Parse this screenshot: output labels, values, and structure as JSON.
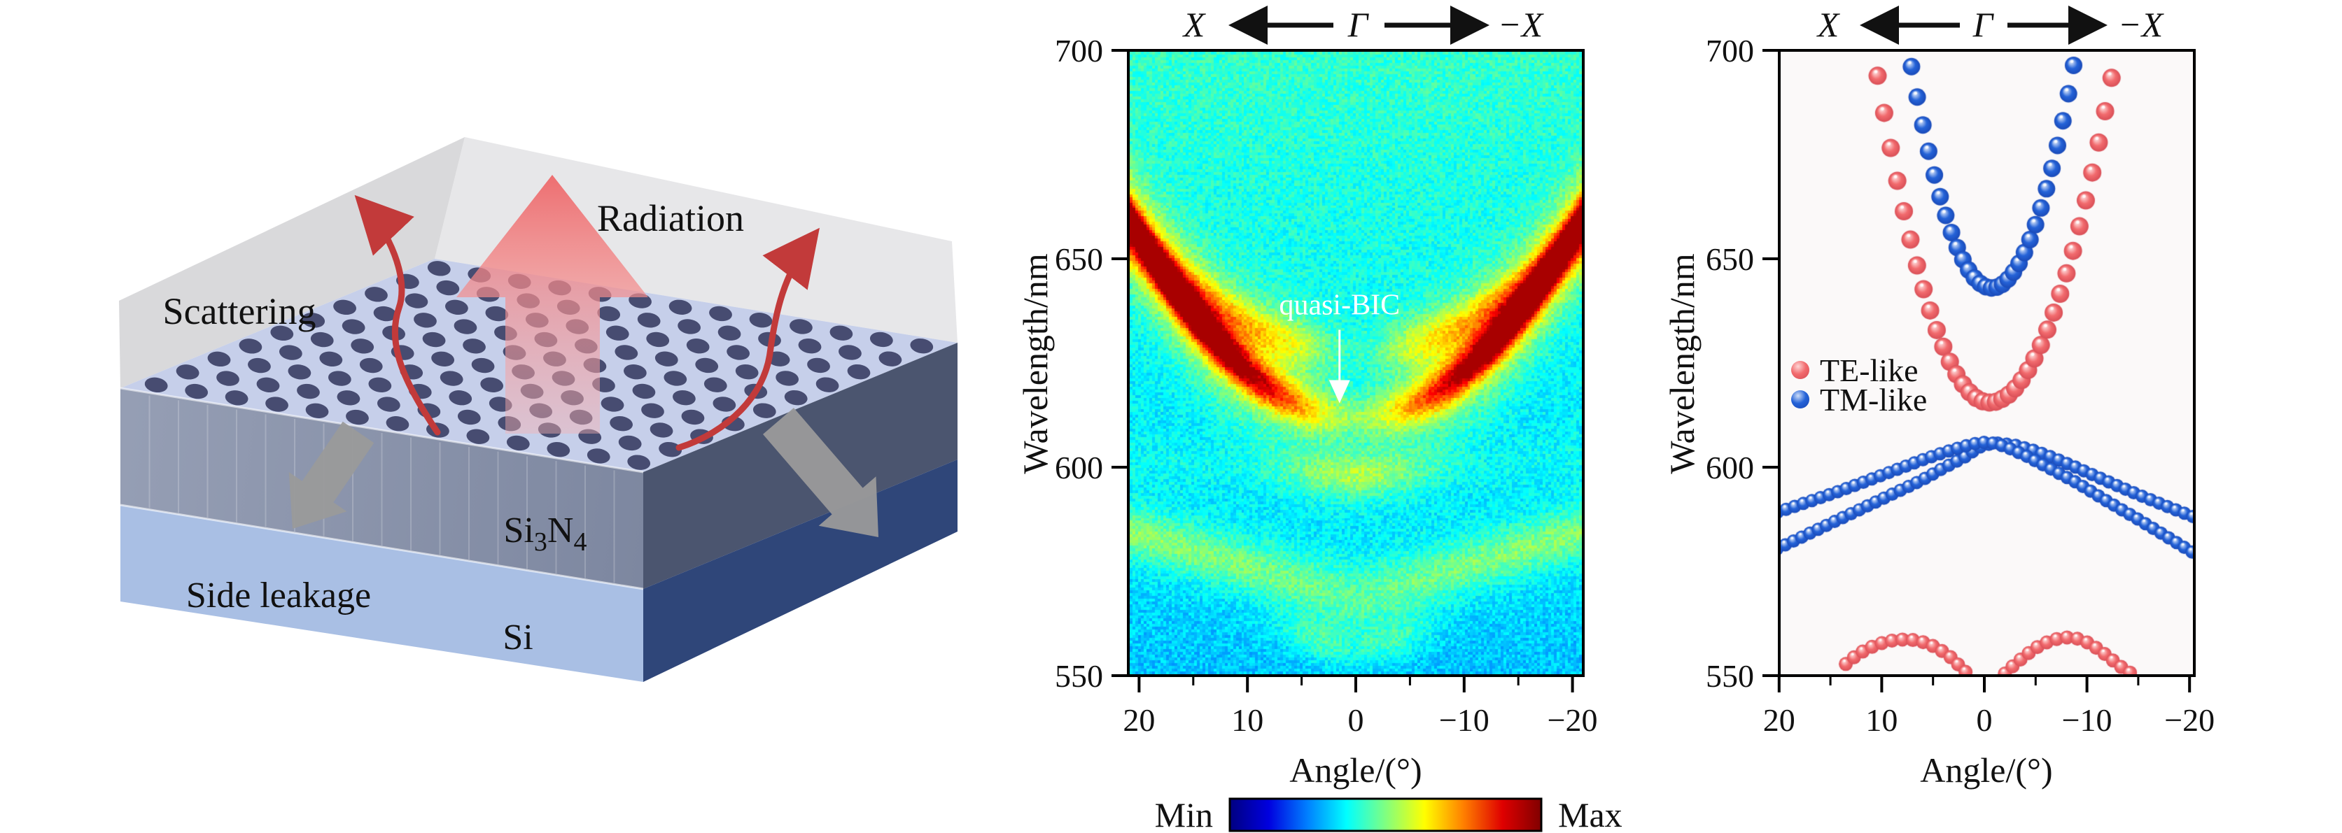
{
  "left_diagram": {
    "labels": {
      "radiation": "Radiation",
      "scattering": "Scattering",
      "si3n4": {
        "base1": "Si",
        "sub1": "3",
        "base2": "N",
        "sub2": "4"
      },
      "side_leakage": "Side leakage",
      "si": "Si"
    },
    "colors": {
      "top_plane": "#e7e7e9",
      "top_plane_shade": "#d9d9db",
      "slab_top": "#c6cfea",
      "hole": "#3c4166",
      "si3n4_front": "#9099af",
      "si_front": "#a9bfe4",
      "side_si3n4": "#4b556f",
      "side_si": "#2f4679",
      "gray_arrow": "#9a9a9a",
      "red_arrow": "#c23a3a",
      "pink_arrow": "#f07e7e"
    }
  },
  "chart_data": [
    {
      "type": "heatmap",
      "panel": "middle",
      "xlabel": "Angle/(°)",
      "ylabel": "Wavelength/nm",
      "bz_path": {
        "left": "X",
        "center": "Γ",
        "right": "−X"
      },
      "x_tick_labels": [
        "20",
        "10",
        "0",
        "−10",
        "−20"
      ],
      "x_tick_values": [
        20,
        10,
        0,
        -10,
        -20
      ],
      "x_minor_tick_values": [
        15,
        5,
        -5,
        -15
      ],
      "y_tick_labels": [
        "700",
        "650",
        "600",
        "550"
      ],
      "y_tick_values": [
        700,
        650,
        600,
        550
      ],
      "xlim": [
        21,
        -21
      ],
      "ylim": [
        550,
        700
      ],
      "grid": false,
      "annotation": {
        "text": "quasi-BIC",
        "color": "#ffffff",
        "theta": 1.5,
        "lambda": 638,
        "arrow_to_lambda": 613
      },
      "colorbar": {
        "min_label": "Min",
        "max_label": "Max",
        "colormap": "jet"
      },
      "background_level": {
        "t_bottom": 0.3,
        "t_top": 0.42,
        "noise": 0.055
      },
      "bands": [
        {
          "kind": "parabola",
          "lambda0": 612,
          "k": 0.11,
          "sigma": 3.5,
          "halo": 2.6,
          "amp_base": 0.12,
          "amp_scale": 0.3,
          "amp_width": 6,
          "boost_amp": 0.28,
          "boost_center": 16,
          "boost_width": 6
        },
        {
          "kind": "parabola",
          "lambda0": 628,
          "k": 0.06,
          "sigma": 4.0,
          "halo": 2.2,
          "amp_base": 0.03,
          "amp_scale": 0.18,
          "amp_width": 5,
          "boost_amp": 0,
          "boost_center": 0,
          "boost_width": 1
        },
        {
          "kind": "vee",
          "lambda0": 598,
          "k": 0.2,
          "sigma": 3.5,
          "halo": 2.0,
          "amp_base": 0.02,
          "amp_scale": 0,
          "amp_width": 1,
          "boost_amp": 0.13,
          "boost_center": 0,
          "boost_width": 6
        },
        {
          "kind": "vee",
          "lambda0": 566,
          "k": 0.9,
          "sigma": 4.0,
          "halo": 2.0,
          "amp_base": 0.085,
          "amp_scale": 0,
          "amp_width": 1,
          "boost_amp": 0,
          "boost_center": 0,
          "boost_width": 1
        },
        {
          "kind": "vee",
          "lambda0": 573,
          "k": 0.5,
          "sigma": 4.0,
          "halo": 2.0,
          "amp_base": 0.05,
          "amp_scale": 0,
          "amp_width": 1,
          "boost_amp": 0,
          "boost_center": 0,
          "boost_width": 1
        },
        {
          "kind": "vee",
          "lambda0": 556,
          "k": 0.8,
          "sigma": 3.0,
          "halo": 2.0,
          "amp_base": 0,
          "amp_scale": 0,
          "amp_width": 1,
          "boost_amp": 0.09,
          "boost_center": 3,
          "boost_width": 4
        }
      ]
    },
    {
      "type": "scatter",
      "panel": "right",
      "xlabel": "Angle/(°)",
      "ylabel": "Wavelength/nm",
      "bz_path": {
        "left": "X",
        "center": "Γ",
        "right": "−X"
      },
      "x_tick_labels": [
        "20",
        "10",
        "0",
        "−10",
        "−20"
      ],
      "x_tick_values": [
        20,
        10,
        0,
        -10,
        -20
      ],
      "x_minor_tick_values": [
        15,
        5,
        -5,
        -15
      ],
      "y_tick_labels": [
        "700",
        "650",
        "600",
        "550"
      ],
      "y_tick_values": [
        700,
        650,
        600,
        550
      ],
      "xlim": [
        20,
        -20.5
      ],
      "ylim": [
        550,
        700
      ],
      "grid": false,
      "plot_bg": "#fbf9f9",
      "legend": [
        {
          "label": "TE-like",
          "color": "#f26b6e"
        },
        {
          "label": "TM-like",
          "color": "#2563d8"
        }
      ],
      "series": [
        {
          "name": "TE-like",
          "color": {
            "base": "#f26b6e",
            "light": "#fdd6d6",
            "dark": "#d94f57"
          },
          "branches": [
            {
              "desc": "upper parabola",
              "bead_radius": 13,
              "bead_spacing": null,
              "points": [
                [
                  10.4,
                  693.9
                ],
                [
                  9.76,
                  685.0
                ],
                [
                  9.12,
                  676.6
                ],
                [
                  8.48,
                  668.7
                ],
                [
                  7.84,
                  661.4
                ],
                [
                  7.2,
                  654.6
                ],
                [
                  6.56,
                  648.4
                ],
                [
                  5.92,
                  642.7
                ],
                [
                  5.28,
                  637.6
                ],
                [
                  4.64,
                  632.9
                ],
                [
                  4.0,
                  628.9
                ],
                [
                  3.36,
                  625.3
                ],
                [
                  2.72,
                  622.3
                ],
                [
                  2.08,
                  619.9
                ],
                [
                  1.44,
                  618.0
                ],
                [
                  0.8,
                  616.6
                ],
                [
                  0.16,
                  615.8
                ],
                [
                  -0.5,
                  615.5
                ],
                [
                  -1.13,
                  615.7
                ],
                [
                  -1.75,
                  616.4
                ],
                [
                  -2.38,
                  617.4
                ],
                [
                  -3.0,
                  618.9
                ],
                [
                  -3.63,
                  620.9
                ],
                [
                  -4.26,
                  623.3
                ],
                [
                  -4.88,
                  626.1
                ],
                [
                  -5.51,
                  629.3
                ],
                [
                  -6.14,
                  633.0
                ],
                [
                  -6.76,
                  637.1
                ],
                [
                  -7.39,
                  641.6
                ],
                [
                  -8.01,
                  646.5
                ],
                [
                  -8.64,
                  651.9
                ],
                [
                  -9.27,
                  657.8
                ],
                [
                  -9.89,
                  664.0
                ],
                [
                  -10.52,
                  670.7
                ],
                [
                  -11.15,
                  677.9
                ],
                [
                  -11.77,
                  685.4
                ],
                [
                  -12.4,
                  693.4
                ]
              ]
            },
            {
              "desc": "lower arc left",
              "bead_radius": 10,
              "bead_spacing": 15,
              "points": [
                [
                  13.5,
                  552.8
                ],
                [
                  12.5,
                  554.8
                ],
                [
                  11.5,
                  556.3
                ],
                [
                  10.5,
                  557.4
                ],
                [
                  9.5,
                  558.2
                ],
                [
                  8.5,
                  558.6
                ],
                [
                  7.5,
                  558.7
                ],
                [
                  6.5,
                  558.4
                ],
                [
                  5.5,
                  557.7
                ],
                [
                  4.5,
                  556.5
                ],
                [
                  3.5,
                  554.9
                ],
                [
                  2.8,
                  553.3
                ],
                [
                  2.2,
                  551.8
                ],
                [
                  1.7,
                  550.6
                ]
              ]
            },
            {
              "desc": "lower arc right",
              "bead_radius": 10,
              "bead_spacing": 15,
              "points": [
                [
                  -2.0,
                  550.5
                ],
                [
                  -2.6,
                  551.9
                ],
                [
                  -3.3,
                  553.4
                ],
                [
                  -4.2,
                  555.2
                ],
                [
                  -5.2,
                  556.9
                ],
                [
                  -6.2,
                  558.1
                ],
                [
                  -7.2,
                  558.9
                ],
                [
                  -8.2,
                  559.2
                ],
                [
                  -9.2,
                  558.8
                ],
                [
                  -10.2,
                  557.8
                ],
                [
                  -11.2,
                  556.2
                ],
                [
                  -12.2,
                  554.3
                ],
                [
                  -13.2,
                  552.3
                ],
                [
                  -14.4,
                  550.4
                ]
              ]
            }
          ]
        },
        {
          "name": "TM-like",
          "color": {
            "base": "#2563d8",
            "light": "#cfdef8",
            "dark": "#1a4ab8"
          },
          "branches": [
            {
              "desc": "upper parabola",
              "bead_radius": 12.5,
              "bead_spacing": null,
              "points": [
                [
                  7.1,
                  696.1
                ],
                [
                  6.54,
                  688.8
                ],
                [
                  5.99,
                  682.1
                ],
                [
                  5.43,
                  675.8
                ],
                [
                  4.87,
                  670.1
                ],
                [
                  4.31,
                  664.9
                ],
                [
                  3.76,
                  660.4
                ],
                [
                  3.2,
                  656.3
                ],
                [
                  2.64,
                  652.7
                ],
                [
                  2.09,
                  649.8
                ],
                [
                  1.53,
                  647.3
                ],
                [
                  0.97,
                  645.4
                ],
                [
                  0.41,
                  644.1
                ],
                [
                  -0.14,
                  643.3
                ],
                [
                  -0.7,
                  643.0
                ],
                [
                  -1.24,
                  643.2
                ],
                [
                  -1.77,
                  643.9
                ],
                [
                  -2.31,
                  645.1
                ],
                [
                  -2.84,
                  646.8
                ],
                [
                  -3.38,
                  648.9
                ],
                [
                  -3.91,
                  651.5
                ],
                [
                  -4.45,
                  654.6
                ],
                [
                  -4.99,
                  658.2
                ],
                [
                  -5.52,
                  662.2
                ],
                [
                  -6.06,
                  666.8
                ],
                [
                  -6.59,
                  671.7
                ],
                [
                  -7.13,
                  677.2
                ],
                [
                  -7.66,
                  683.1
                ],
                [
                  -8.2,
                  689.6
                ],
                [
                  -8.7,
                  696.4
                ]
              ]
            },
            {
              "desc": "middle band A",
              "bead_radius": 9.5,
              "bead_spacing": 13,
              "points": [
                [
                  21,
                  588.5
                ],
                [
                  18,
                  591.0
                ],
                [
                  15,
                  593.5
                ],
                [
                  12,
                  596.2
                ],
                [
                  9,
                  599.0
                ],
                [
                  6,
                  601.8
                ],
                [
                  4,
                  603.5
                ],
                [
                  2,
                  605.0
                ],
                [
                  0.5,
                  605.9
                ],
                [
                  -0.5,
                  606.0
                ],
                [
                  -2,
                  605.0
                ],
                [
                  -4,
                  602.8
                ],
                [
                  -6,
                  600.2
                ],
                [
                  -9,
                  596.3
                ],
                [
                  -12,
                  591.8
                ],
                [
                  -15,
                  587.5
                ],
                [
                  -18,
                  583.0
                ],
                [
                  -21,
                  578.5
                ]
              ]
            },
            {
              "desc": "middle band B",
              "bead_radius": 9.5,
              "bead_spacing": 13,
              "points": [
                [
                  21,
                  579.5
                ],
                [
                  18,
                  583.0
                ],
                [
                  15,
                  586.5
                ],
                [
                  12,
                  590.0
                ],
                [
                  9,
                  593.5
                ],
                [
                  6,
                  597.0
                ],
                [
                  4,
                  599.8
                ],
                [
                  2,
                  602.3
                ],
                [
                  0.5,
                  604.8
                ],
                [
                  -1,
                  605.9
                ],
                [
                  -3,
                  605.3
                ],
                [
                  -5,
                  603.9
                ],
                [
                  -7,
                  602.0
                ],
                [
                  -9,
                  599.9
                ],
                [
                  -12,
                  596.6
                ],
                [
                  -15,
                  593.4
                ],
                [
                  -18,
                  590.4
                ],
                [
                  -21,
                  587.5
                ]
              ]
            }
          ]
        }
      ]
    }
  ]
}
